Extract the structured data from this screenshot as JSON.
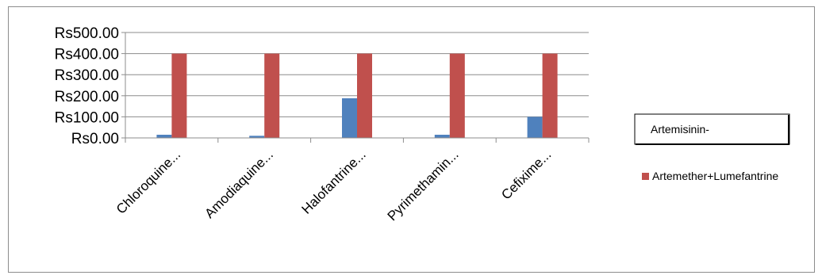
{
  "chart_data": {
    "type": "bar",
    "categories": [
      "Chloroquine...",
      "Amodiaquine...",
      "Halofantrine...",
      "Pyrimethamin...",
      "Cefixime..."
    ],
    "series": [
      {
        "name": "Artemisinin-",
        "color": "#4f81bd",
        "values": [
          15,
          10,
          188,
          15,
          100
        ]
      },
      {
        "name": "Artemether+Lumefantrine",
        "color": "#c0504d",
        "values": [
          400,
          400,
          400,
          400,
          400
        ]
      }
    ],
    "ylim": [
      0,
      500
    ],
    "yticks": [
      0,
      100,
      200,
      300,
      400,
      500
    ],
    "ytick_labels": [
      "Rs0.00",
      "Rs100.00",
      "Rs200.00",
      "Rs300.00",
      "Rs400.00",
      "Rs500.00"
    ],
    "grid": true,
    "legend_position": "right"
  }
}
